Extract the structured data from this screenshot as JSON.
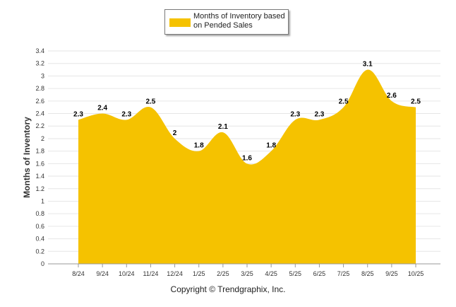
{
  "colors": {
    "fill": "#F5C200",
    "grid": "#e6e6e6",
    "axis": "#999999",
    "text": "#333333"
  },
  "legend": {
    "label": "Months of Inventory based on Pended Sales"
  },
  "footer": {
    "copyright": "Copyright © Trendgraphix, Inc."
  },
  "chart_data": {
    "type": "area",
    "title": "",
    "xlabel": "",
    "ylabel": "Months of Inventory",
    "categories": [
      "8/24",
      "9/24",
      "10/24",
      "11/24",
      "12/24",
      "1/25",
      "2/25",
      "3/25",
      "4/25",
      "5/25",
      "6/25",
      "7/25",
      "8/25",
      "9/25",
      "10/25"
    ],
    "series": [
      {
        "name": "Months of Inventory based on Pended Sales",
        "values": [
          2.3,
          2.4,
          2.3,
          2.5,
          2.0,
          1.8,
          2.1,
          1.6,
          1.8,
          2.3,
          2.3,
          2.5,
          3.1,
          2.6,
          2.5
        ],
        "labels": [
          "2.3",
          "2.4",
          "2.3",
          "2.5",
          "2",
          "1.8",
          "2.1",
          "1.6",
          "1.8",
          "2.3",
          "2.3",
          "2.5",
          "3.1",
          "2.6",
          "2.5"
        ]
      }
    ],
    "ylim": [
      0,
      3.4
    ],
    "yticks": [
      "0",
      "0.2",
      "0.4",
      "0.6",
      "0.8",
      "1",
      "1.2",
      "1.4",
      "1.6",
      "1.8",
      "2",
      "2.2",
      "2.4",
      "2.6",
      "2.8",
      "3",
      "3.2",
      "3.4"
    ],
    "grid": true,
    "legend_position": "top-center"
  }
}
